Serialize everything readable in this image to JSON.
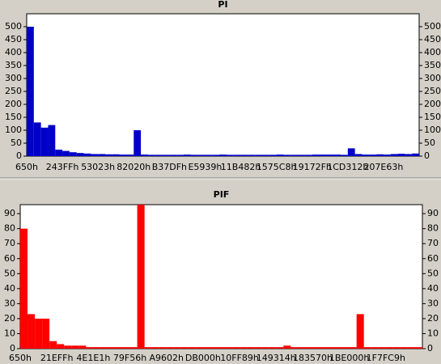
{
  "chart_data": [
    {
      "type": "bar",
      "title": "PI",
      "color": "#0000c8",
      "categories": [
        "650h",
        null,
        null,
        null,
        null,
        "243FFh",
        null,
        null,
        null,
        null,
        "53023h",
        null,
        null,
        null,
        null,
        "82020h",
        null,
        null,
        null,
        null,
        "B37DFh",
        null,
        null,
        null,
        null,
        "E5939h",
        null,
        null,
        null,
        null,
        "11B482h",
        null,
        null,
        null,
        null,
        "1575C8h",
        null,
        null,
        null,
        null,
        "19172Fh",
        null,
        null,
        null,
        null,
        "1CD312h",
        null,
        null,
        null,
        null,
        "207E63h",
        null,
        null,
        null,
        null
      ],
      "values": [
        500,
        130,
        110,
        120,
        25,
        20,
        15,
        12,
        10,
        8,
        8,
        7,
        7,
        6,
        6,
        100,
        6,
        5,
        5,
        5,
        5,
        5,
        6,
        5,
        5,
        5,
        5,
        6,
        5,
        5,
        5,
        5,
        5,
        5,
        5,
        6,
        5,
        5,
        5,
        5,
        6,
        6,
        6,
        6,
        5,
        30,
        8,
        6,
        6,
        7,
        6,
        8,
        9,
        8,
        10
      ],
      "ylim": [
        0,
        550
      ],
      "yticks": [
        0,
        50,
        100,
        150,
        200,
        250,
        300,
        350,
        400,
        450,
        500
      ]
    },
    {
      "type": "bar",
      "title": "PIF",
      "color": "#ff0000",
      "categories": [
        "650h",
        null,
        null,
        null,
        null,
        "21EFFh",
        null,
        null,
        null,
        null,
        "4E1E1h",
        null,
        null,
        null,
        null,
        "79F56h",
        null,
        null,
        null,
        null,
        "A9602h",
        null,
        null,
        null,
        null,
        "DB000h",
        null,
        null,
        null,
        null,
        "10FF89h",
        null,
        null,
        null,
        null,
        "149314h",
        null,
        null,
        null,
        null,
        "183570h",
        null,
        null,
        null,
        null,
        "1BE000h",
        null,
        null,
        null,
        null,
        "1F7FC9h",
        null,
        null,
        null,
        null
      ],
      "values": [
        80,
        23,
        20,
        20,
        5,
        3,
        2,
        2,
        2,
        1,
        1,
        1,
        1,
        1,
        1,
        1,
        96,
        1,
        1,
        1,
        1,
        1,
        1,
        1,
        1,
        1,
        1,
        1,
        1,
        1,
        1,
        1,
        1,
        1,
        1,
        1,
        2,
        1,
        1,
        1,
        1,
        1,
        1,
        1,
        1,
        1,
        23,
        1,
        1,
        1,
        1,
        1,
        1,
        1,
        1
      ],
      "ylim": [
        0,
        96
      ],
      "yticks": [
        0,
        10,
        20,
        30,
        40,
        50,
        60,
        70,
        80,
        90
      ]
    }
  ]
}
